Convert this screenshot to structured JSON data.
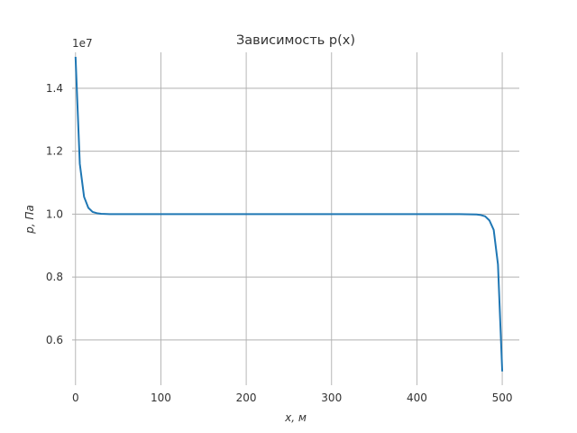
{
  "chart_data": {
    "type": "line",
    "title": "Зависимость p(x)",
    "xlabel": "x,  м",
    "ylabel": "p,  Па",
    "y_offset_text": "1e7",
    "xlim": [
      -4,
      520
    ],
    "ylim": [
      0.4563,
      1.5143
    ],
    "x_ticks": [
      0,
      100,
      200,
      300,
      400,
      500
    ],
    "x_tick_labels": [
      "0",
      "100",
      "200",
      "300",
      "400",
      "500"
    ],
    "y_ticks": [
      0.6,
      0.8,
      1.0,
      1.2,
      1.4
    ],
    "y_tick_labels": [
      "0.6",
      "0.8",
      "1.0",
      "1.2",
      "1.4"
    ],
    "grid": true,
    "series": [
      {
        "color": "#1f77b4",
        "x": [
          0,
          5,
          10,
          15,
          20,
          25,
          30,
          40,
          50,
          100,
          200,
          300,
          400,
          450,
          470,
          475,
          480,
          485,
          490,
          495,
          500
        ],
        "y": [
          1.5,
          1.16,
          1.055,
          1.02,
          1.007,
          1.003,
          1.001,
          1.0,
          1.0,
          1.0,
          1.0,
          1.0,
          1.0,
          1.0,
          0.999,
          0.997,
          0.993,
          0.98,
          0.95,
          0.84,
          0.5
        ]
      }
    ]
  }
}
